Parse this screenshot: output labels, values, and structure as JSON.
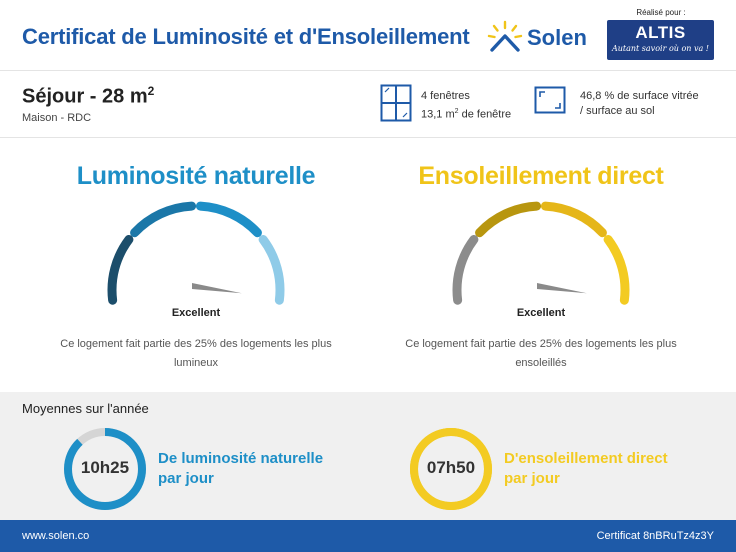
{
  "header": {
    "title": "Certificat de Luminosité et d'Ensoleillement",
    "brand": "Solen",
    "realise_label": "Réalisé pour :",
    "partner_name": "ALTIS",
    "partner_tagline": "Autant savoir où on va !"
  },
  "room": {
    "name": "Séjour - 28 m",
    "name_sup": "2",
    "subtitle": "Maison - RDC"
  },
  "windows": {
    "count_text": "4 fenêtres",
    "area_text": "13,1 m",
    "area_sup": "2",
    "area_suffix": " de fenêtre"
  },
  "glazing": {
    "line1": "46,8 % de surface vitrée",
    "line2": "/ surface au sol"
  },
  "gauges": [
    {
      "title": "Luminosité naturelle",
      "rating": "Excellent",
      "level": 1.0,
      "description": "Ce logement fait partie des 25% des logements les plus lumineux",
      "color": "#1e8fc7",
      "segment_colors": [
        "#1c4e6b",
        "#1b77a8",
        "#1e8fc7",
        "#8fcbe8"
      ]
    },
    {
      "title": "Ensoleillement direct",
      "rating": "Excellent",
      "level": 1.0,
      "description": "Ce logement fait partie des 25% des logements les plus ensoleillés",
      "color": "#f0c419",
      "segment_colors": [
        "#8c8c8c",
        "#b8960f",
        "#e5b619",
        "#f3cb22"
      ]
    }
  ],
  "annual": {
    "title": "Moyennes sur l'année",
    "items": [
      {
        "value": "10h25",
        "line1": "De luminosité naturelle",
        "line2": "par jour",
        "color": "#1e8fc7",
        "track_color": "#d5d5d5",
        "fraction": 0.88
      },
      {
        "value": "07h50",
        "line1": "D'ensoleillement direct",
        "line2": "par jour",
        "color": "#f3cb22",
        "track_color": "#f3cb22",
        "fraction": 1.0
      }
    ]
  },
  "footer": {
    "website": "www.solen.co",
    "certificate": "Certificat 8nBRuTz4z3Y"
  },
  "colors": {
    "brand_blue": "#1e5aa8",
    "partner_navy": "#1f3f86"
  }
}
